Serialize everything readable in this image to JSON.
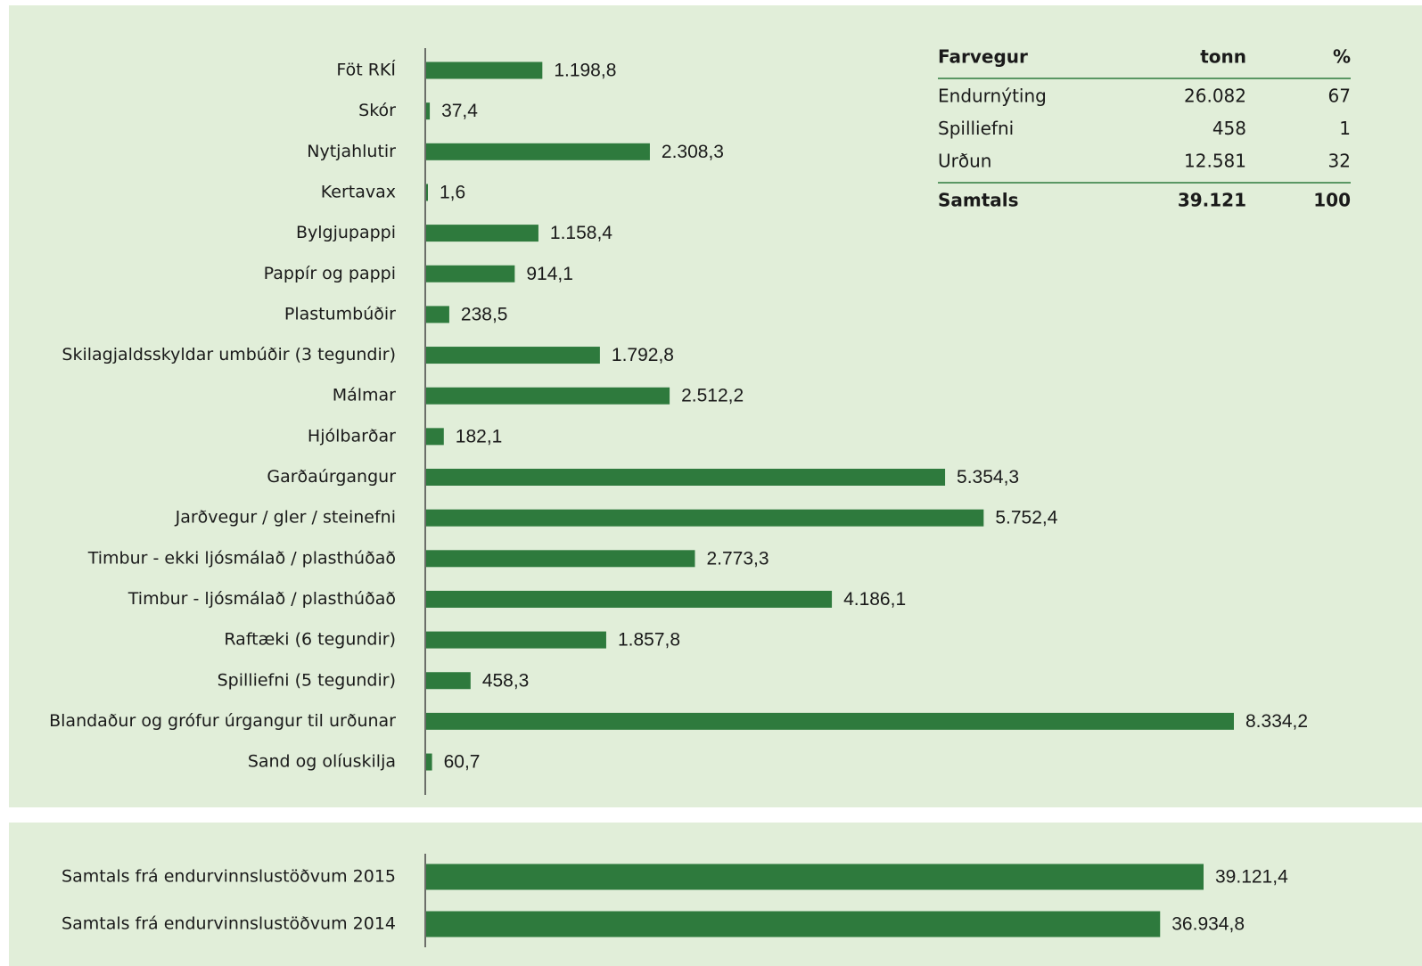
{
  "chart_data": [
    {
      "type": "bar",
      "orientation": "horizontal",
      "color": "#2e7a3d",
      "categories": [
        "Föt RKÍ",
        "Skór",
        "Nytjahlutir",
        "Kertavax",
        "Bylgjupappi",
        "Pappír og pappi",
        "Plastumbúðir",
        "Skilagjaldsskyldar umbúðir (3 tegundir)",
        "Málmar",
        "Hjólbarðar",
        "Garðaúrgangur",
        "Jarðvegur / gler / steinefni",
        "Timbur - ekki ljósmálað / plasthúðað",
        "Timbur - ljósmálað / plasthúðað",
        "Raftæki (6 tegundir)",
        "Spilliefni (5 tegundir)",
        "Blandaður og grófur úrgangur til urðunar",
        "Sand og olíuskilja"
      ],
      "values": [
        1198.8,
        37.4,
        2308.3,
        1.6,
        1158.4,
        914.1,
        238.5,
        1792.8,
        2512.2,
        182.1,
        5354.3,
        5752.4,
        2773.3,
        4186.1,
        1857.8,
        458.3,
        8334.2,
        60.7
      ],
      "value_labels": [
        "1.198,8",
        "37,4",
        "2.308,3",
        "1,6",
        "1.158,4",
        "914,1",
        "238,5",
        "1.792,8",
        "2.512,2",
        "182,1",
        "5.354,3",
        "5.752,4",
        "2.773,3",
        "4.186,1",
        "1.857,8",
        "458,3",
        "8.334,2",
        "60,7"
      ]
    },
    {
      "type": "bar",
      "orientation": "horizontal",
      "color": "#2e7a3d",
      "categories": [
        "Samtals frá endurvinnslustöðvum 2015",
        "Samtals frá endurvinnslustöðvum 2014"
      ],
      "values": [
        39121.4,
        36934.8
      ],
      "value_labels": [
        "39.121,4",
        "36.934,8"
      ]
    }
  ],
  "table": {
    "header": [
      "Farvegur",
      "tonn",
      "%"
    ],
    "rows": [
      [
        "Endurnýting",
        "26.082",
        "67"
      ],
      [
        "Spilliefni",
        "458",
        "1"
      ],
      [
        "Urðun",
        "12.581",
        "32"
      ]
    ],
    "total": [
      "Samtals",
      "39.121",
      "100"
    ]
  }
}
